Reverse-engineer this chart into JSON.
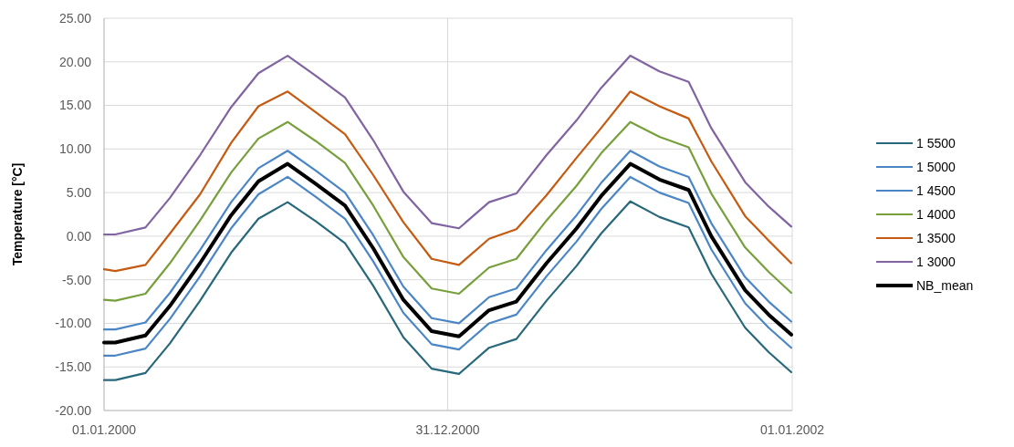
{
  "chart_data": {
    "type": "line",
    "ylabel": "Temperature [°C]",
    "x": [
      "2000-01-01",
      "2000-01-13",
      "2000-02-14",
      "2000-03-11",
      "2000-04-12",
      "2000-05-15",
      "2000-06-13",
      "2000-07-14",
      "2000-08-13",
      "2000-09-13",
      "2000-10-13",
      "2000-11-14",
      "2000-12-14",
      "2001-01-12",
      "2001-02-13",
      "2001-03-14",
      "2001-04-15",
      "2001-05-17",
      "2001-06-12",
      "2001-07-13",
      "2001-08-13",
      "2001-09-13",
      "2001-10-07",
      "2001-11-12",
      "2001-12-07",
      "2001-12-31"
    ],
    "series": [
      {
        "name": "1 5500",
        "color": "#27687a",
        "values": [
          -16.5,
          -16.5,
          -15.7,
          -12.3,
          -7.4,
          -1.9,
          2.0,
          3.9,
          1.7,
          -0.8,
          -5.7,
          -11.6,
          -15.2,
          -15.8,
          -12.8,
          -11.8,
          -7.4,
          -3.4,
          0.3,
          4.0,
          2.2,
          1.0,
          -4.3,
          -10.5,
          -13.3,
          -15.6
        ]
      },
      {
        "name": "1 5000",
        "color": "#4a86c5",
        "values": [
          -13.7,
          -13.7,
          -12.9,
          -9.5,
          -4.6,
          0.9,
          4.8,
          6.8,
          4.5,
          2.0,
          -2.9,
          -8.8,
          -12.4,
          -13.0,
          -10.0,
          -9.0,
          -4.6,
          -0.6,
          3.1,
          6.8,
          5.0,
          3.8,
          -1.5,
          -7.7,
          -10.5,
          -12.8
        ]
      },
      {
        "name": "1 4500",
        "color": "#4a86c5",
        "values": [
          -10.7,
          -10.7,
          -9.9,
          -6.5,
          -1.6,
          3.9,
          7.8,
          9.8,
          7.5,
          5.0,
          0.1,
          -5.8,
          -9.4,
          -10.0,
          -7.0,
          -6.0,
          -1.6,
          2.4,
          6.1,
          9.8,
          8.0,
          6.8,
          1.5,
          -4.7,
          -7.5,
          -9.8
        ]
      },
      {
        "name": "1 4000",
        "color": "#77a03c",
        "values": [
          -7.3,
          -7.4,
          -6.6,
          -3.1,
          1.8,
          7.3,
          11.2,
          13.1,
          10.9,
          8.4,
          3.5,
          -2.4,
          -6.0,
          -6.6,
          -3.6,
          -2.6,
          1.8,
          5.8,
          9.5,
          13.1,
          11.4,
          10.2,
          4.9,
          -1.3,
          -4.1,
          -6.5
        ]
      },
      {
        "name": "1 3500",
        "color": "#c55a11",
        "values": [
          -3.8,
          -4.0,
          -3.3,
          0.3,
          4.8,
          10.7,
          14.9,
          16.6,
          14.2,
          11.7,
          7.0,
          1.6,
          -2.6,
          -3.3,
          -0.3,
          0.8,
          4.7,
          9.0,
          12.4,
          16.6,
          14.9,
          13.5,
          8.6,
          2.3,
          -0.5,
          -3.1
        ]
      },
      {
        "name": "1 3000",
        "color": "#8064a2",
        "values": [
          0.2,
          0.2,
          1.0,
          4.4,
          9.3,
          14.8,
          18.7,
          20.7,
          18.4,
          15.9,
          11.0,
          5.1,
          1.5,
          0.9,
          3.9,
          4.9,
          9.3,
          13.3,
          17.0,
          20.7,
          18.9,
          17.7,
          12.4,
          6.2,
          3.4,
          1.1
        ]
      },
      {
        "name": "NB_mean",
        "color": "#000000",
        "values": [
          -12.2,
          -12.2,
          -11.4,
          -8.0,
          -3.1,
          2.4,
          6.3,
          8.3,
          6.0,
          3.5,
          -1.4,
          -7.3,
          -10.9,
          -11.5,
          -8.5,
          -7.5,
          -3.1,
          0.9,
          4.6,
          8.3,
          6.5,
          5.3,
          0.0,
          -6.2,
          -9.0,
          -11.3
        ]
      }
    ],
    "xlim": [
      "2000-01-01",
      "2002-01-01"
    ],
    "xticks": [
      {
        "value": "2000-01-01",
        "label": "01.01.2000"
      },
      {
        "value": "2000-12-31",
        "label": "31.12.2000"
      },
      {
        "value": "2002-01-01",
        "label": "01.01.2002"
      }
    ],
    "ylim": [
      -20,
      25
    ],
    "yticks": [
      {
        "value": -20,
        "label": "-20.00"
      },
      {
        "value": -15,
        "label": "-15.00"
      },
      {
        "value": -10,
        "label": "-10.00"
      },
      {
        "value": -5,
        "label": "-5.00"
      },
      {
        "value": 0,
        "label": "0.00"
      },
      {
        "value": 5,
        "label": "5.00"
      },
      {
        "value": 10,
        "label": "10.00"
      },
      {
        "value": 15,
        "label": "15.00"
      },
      {
        "value": 20,
        "label": "20.00"
      },
      {
        "value": 25,
        "label": "25.00"
      }
    ],
    "grid": true,
    "legend": "right",
    "marker": "none",
    "line_style": "solid"
  }
}
